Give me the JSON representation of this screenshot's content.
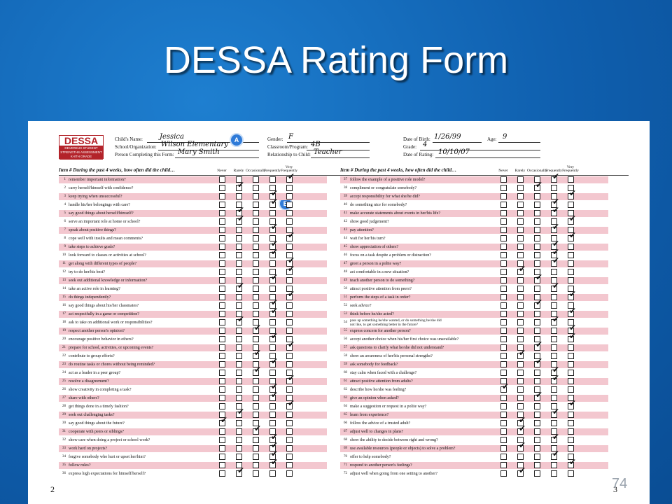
{
  "slide": {
    "title": "DESSA Rating Form",
    "slide_number": "74"
  },
  "form": {
    "logo": {
      "name": "DESSA",
      "subtitle": "DEVEREUX STUDENT\nSTRENGTHS ASSESSMENT\nK-8TH GRADE"
    },
    "fields": {
      "child_name_label": "Child's Name:",
      "child_name": "Jessica",
      "school_label": "School/Organization:",
      "school": "Wilson Elementary",
      "person_label": "Person Completing this Form:",
      "person": "Mary Smith",
      "gender_label": "Gender:",
      "gender": "F",
      "classroom_label": "Classroom/Program:",
      "classroom": "4B",
      "relationship_label": "Relationship to Child:",
      "relationship": "Teacher",
      "dob_label": "Date of Birth:",
      "dob": "1/26/99",
      "age_label": "Age:",
      "age": "9",
      "grade_label": "Grade:",
      "grade": "4",
      "rating_date_label": "Date of Rating:",
      "rating_date": "10/10/07"
    },
    "markers": [
      "A",
      "B"
    ],
    "column_header": "Item #  During the past 4 weeks, how often did the child…",
    "rating_options": [
      "Never",
      "Rarely",
      "Occasionally",
      "Frequently",
      "Very Frequently"
    ],
    "left_items": [
      {
        "n": "1",
        "t": "remember important information?",
        "r": 4
      },
      {
        "n": "2",
        "t": "carry herself/himself with confidence?",
        "r": 1
      },
      {
        "n": "3",
        "t": "keep trying when unsuccessful?",
        "r": 3
      },
      {
        "n": "4",
        "t": "handle his/her belongings with care?",
        "r": 3
      },
      {
        "n": "5",
        "t": "say good things about herself/himself?",
        "r": 1
      },
      {
        "n": "6",
        "t": "serve an important role at home or school?",
        "r": 1
      },
      {
        "n": "7",
        "t": "speak about positive things?",
        "r": 3
      },
      {
        "n": "8",
        "t": "cope well with insults and mean comments?",
        "r": 4
      },
      {
        "n": "9",
        "t": "take steps to achieve goals?",
        "r": 3
      },
      {
        "n": "10",
        "t": "look forward to classes or activities at school?",
        "r": 3
      },
      {
        "n": "11",
        "t": "get along with different types of people?",
        "r": 4
      },
      {
        "n": "12",
        "t": "try to do her/his best?",
        "r": 4
      },
      {
        "n": "13",
        "t": "seek out additional knowledge or information?",
        "r": 3
      },
      {
        "n": "14",
        "t": "take an active role in learning?",
        "r": 1
      },
      {
        "n": "15",
        "t": "do things independently?",
        "r": 4
      },
      {
        "n": "16",
        "t": "say good things about his/her classmates?",
        "r": 3
      },
      {
        "n": "17",
        "t": "act respectfully in a game or competition?",
        "r": 3
      },
      {
        "n": "18",
        "t": "ask to take on additional work or responsibilities?",
        "r": 1
      },
      {
        "n": "19",
        "t": "respect another person's opinion?",
        "r": 2
      },
      {
        "n": "20",
        "t": "encourage positive behavior in others?",
        "r": 3
      },
      {
        "n": "21",
        "t": "prepare for school, activities, or upcoming events?",
        "r": 4
      },
      {
        "n": "22",
        "t": "contribute to group efforts?",
        "r": 2
      },
      {
        "n": "23",
        "t": "do routine tasks or chores without being reminded?",
        "r": 3
      },
      {
        "n": "24",
        "t": "act as a leader in a peer group?",
        "r": 2
      },
      {
        "n": "25",
        "t": "resolve a disagreement?",
        "r": 4
      },
      {
        "n": "26",
        "t": "show creativity in completing a task?",
        "r": 3
      },
      {
        "n": "27",
        "t": "share with others?",
        "r": 3
      },
      {
        "n": "28",
        "t": "get things done in a timely fashion?",
        "r": 4
      },
      {
        "n": "29",
        "t": "seek out challenging tasks?",
        "r": 1
      },
      {
        "n": "30",
        "t": "say good things about the future?",
        "r": 0
      },
      {
        "n": "31",
        "t": "cooperate with peers or siblings?",
        "r": 2
      },
      {
        "n": "32",
        "t": "show care when doing a project or school work?",
        "r": 3
      },
      {
        "n": "33",
        "t": "work hard on projects?",
        "r": 3
      },
      {
        "n": "34",
        "t": "forgive somebody who hurt or upset her/him?",
        "r": 3
      },
      {
        "n": "35",
        "t": "follow rules?",
        "r": 3
      },
      {
        "n": "36",
        "t": "express high expectations for himself/herself?",
        "r": 1
      }
    ],
    "right_items": [
      {
        "n": "37",
        "t": "follow the example of a positive role model?",
        "r": 3
      },
      {
        "n": "38",
        "t": "compliment or congratulate somebody?",
        "r": 2
      },
      {
        "n": "39",
        "t": "accept responsibility for what she/he did?",
        "r": 4
      },
      {
        "n": "40",
        "t": "do something nice for somebody?",
        "r": 3
      },
      {
        "n": "41",
        "t": "make accurate statements about events in her/his life?",
        "r": 3
      },
      {
        "n": "42",
        "t": "show good judgement?",
        "r": 4
      },
      {
        "n": "43",
        "t": "pay attention?",
        "r": 3
      },
      {
        "n": "44",
        "t": "wait for her/his turn?",
        "r": 4
      },
      {
        "n": "45",
        "t": "show appreciation of others?",
        "r": 3
      },
      {
        "n": "46",
        "t": "focus on a task despite a problem or distraction?",
        "r": 3
      },
      {
        "n": "47",
        "t": "greet a person in a polite way?",
        "r": 3
      },
      {
        "n": "48",
        "t": "act comfortable in a new situation?",
        "r": 1
      },
      {
        "n": "49",
        "t": "teach another person to do something?",
        "r": 2
      },
      {
        "n": "50",
        "t": "attract positive attention from peers?",
        "r": 3
      },
      {
        "n": "51",
        "t": "perform the steps of a task in order?",
        "r": 4
      },
      {
        "n": "52",
        "t": "seek advice?",
        "r": 2
      },
      {
        "n": "53",
        "t": "think before he/she acted?",
        "r": 4
      },
      {
        "n": "54",
        "t": "pass up something he/she wanted, or do something he/she did\nnot like, to get something better in the future?",
        "r": 3
      },
      {
        "n": "55",
        "t": "express concern for another person?",
        "r": 4
      },
      {
        "n": "56",
        "t": "accept another choice when his/her first choice was unavailable?",
        "r": 4
      },
      {
        "n": "57",
        "t": "ask questions to clarify what he/she did not understand?",
        "r": 2
      },
      {
        "n": "58",
        "t": "show an awareness of her/his personal strengths?",
        "r": 1
      },
      {
        "n": "59",
        "t": "ask somebody for feedback?",
        "r": 2
      },
      {
        "n": "60",
        "t": "stay calm when faced with a challenge?",
        "r": 3
      },
      {
        "n": "61",
        "t": "attract positive attention from adults?",
        "r": 3
      },
      {
        "n": "62",
        "t": "describe how he/she was feeling?",
        "r": 0
      },
      {
        "n": "63",
        "t": "give an opinion when asked?",
        "r": 2
      },
      {
        "n": "64",
        "t": "make a suggestion or request in a polite way?",
        "r": 4
      },
      {
        "n": "65",
        "t": "learn from experience?",
        "r": 3
      },
      {
        "n": "66",
        "t": "follow the advice of a trusted adult?",
        "r": 1
      },
      {
        "n": "67",
        "t": "adjust well to changes in plans?",
        "r": 1
      },
      {
        "n": "68",
        "t": "show the ability to decide between right and wrong?",
        "r": 3
      },
      {
        "n": "69",
        "t": "use available resources (people or objects) to solve a problem?",
        "r": 1
      },
      {
        "n": "70",
        "t": "offer to help somebody?",
        "r": 3
      },
      {
        "n": "71",
        "t": "respond to another person's feelings?",
        "r": 4
      },
      {
        "n": "72",
        "t": "adjust well when going from one setting to another?",
        "r": 1
      }
    ],
    "page_left": "2",
    "page_right": "3"
  }
}
